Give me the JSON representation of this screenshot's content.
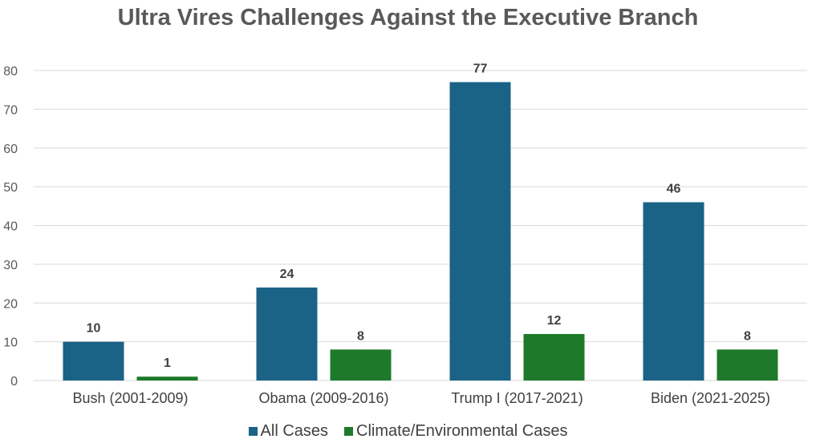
{
  "chart_data": {
    "type": "bar",
    "title": "Ultra Vires Challenges Against the Executive Branch",
    "categories": [
      "Bush (2001-2009)",
      "Obama (2009-2016)",
      "Trump I (2017-2021)",
      "Biden (2021-2025)"
    ],
    "series": [
      {
        "name": "All Cases",
        "values": [
          10,
          24,
          77,
          46
        ],
        "color": "#1a6286"
      },
      {
        "name": "Climate/Environmental Cases",
        "values": [
          1,
          8,
          12,
          8
        ],
        "color": "#1e7a2a"
      }
    ],
    "ylim": [
      0,
      80
    ],
    "yticks": [
      0,
      10,
      20,
      30,
      40,
      50,
      60,
      70,
      80
    ],
    "grid": true,
    "legend": "bottom",
    "xlabel": "",
    "ylabel": ""
  }
}
